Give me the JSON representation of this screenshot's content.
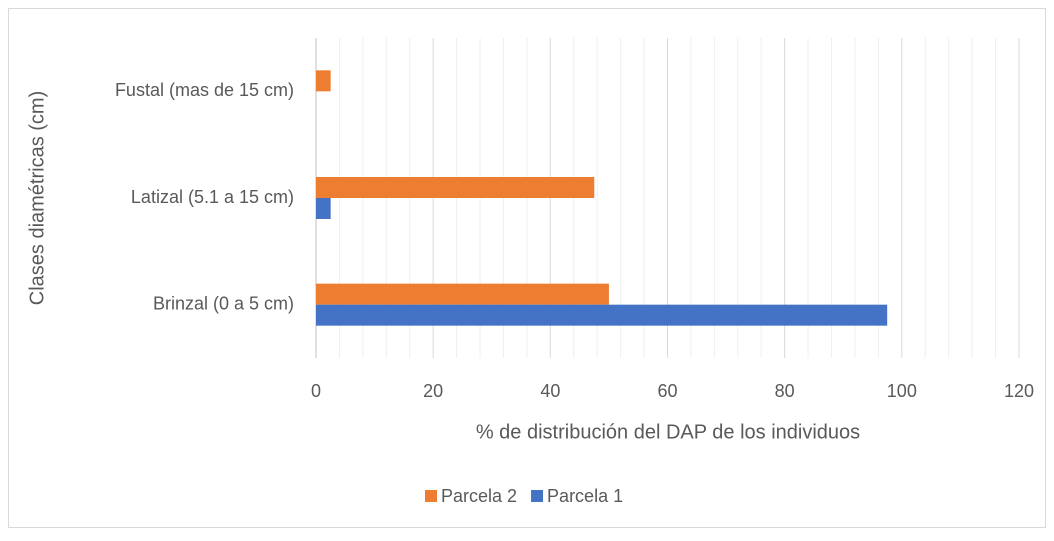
{
  "chart_data": {
    "type": "hbar",
    "xlabel": "% de distribución del DAP de los individuos",
    "ylabel": "Clases diamétricas (cm)",
    "categories": [
      "Brinzal (0 a 5 cm)",
      "Latizal (5.1 a 15 cm)",
      "Fustal (mas de 15 cm)"
    ],
    "series": [
      {
        "name": "Parcela 2",
        "color": "#ed7d31",
        "values": [
          50,
          47.5,
          2.5
        ]
      },
      {
        "name": "Parcela 1",
        "color": "#4472c4",
        "values": [
          97.5,
          2.5,
          0
        ]
      }
    ],
    "xlim": [
      0,
      120
    ],
    "xticks": [
      0,
      20,
      40,
      60,
      80,
      100,
      120
    ],
    "grid": true,
    "legend": "bottom"
  }
}
